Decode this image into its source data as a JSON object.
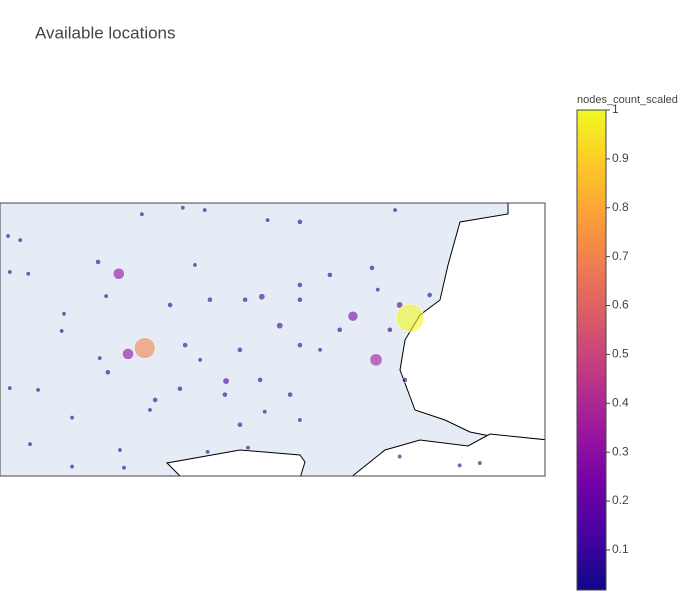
{
  "chart_data": {
    "type": "scatter_geo",
    "title": "Available locations",
    "colorbar_title": "nodes_count_scaled",
    "colorscale": [
      "#0d0887",
      "#46039f",
      "#7201a8",
      "#9c179e",
      "#bd3786",
      "#d8576b",
      "#ed7953",
      "#fb9f3a",
      "#fdca26",
      "#f0f921"
    ],
    "clim": [
      0.018,
      1
    ],
    "cticks": [
      0.1,
      0.2,
      0.3,
      0.4,
      0.5,
      0.6,
      0.7,
      0.8,
      0.9,
      1
    ],
    "lonlim": [
      20.8,
      30.25
    ],
    "latlim": [
      40.53,
      45.16
    ],
    "lon": [
      23.31,
      27.91,
      22.86,
      27.32,
      26.92,
      23.02,
      25.34,
      25.65,
      24.72,
      23.26,
      23.97,
      24.35,
      25.44,
      26.0,
      27.65,
      20.94,
      21.15,
      20.97,
      21.29,
      22.5,
      22.64,
      21.91,
      21.87,
      22.53,
      22.67,
      20.97,
      21.46,
      22.05,
      21.32,
      22.05,
      22.88,
      22.95,
      23.49,
      23.75,
      24.18,
      24.44,
      25.05,
      26.0,
      26.52,
      27.25,
      27.35,
      26.0,
      24.01,
      24.27,
      24.96,
      25.31,
      26.0,
      26.35,
      26.69,
      27.56,
      27.73,
      28.25,
      27.82,
      24.96,
      25.39,
      26.0,
      24.4,
      25.1,
      27.73,
      28.77,
      29.12,
      23.92,
      23.4,
      24.7,
      25.83
    ],
    "lat": [
      42.7,
      43.21,
      43.96,
      42.5,
      43.24,
      42.6,
      43.57,
      43.08,
      42.14,
      44.97,
      45.08,
      45.04,
      44.87,
      44.84,
      45.04,
      44.6,
      44.53,
      43.99,
      43.96,
      44.16,
      43.58,
      43.28,
      42.99,
      42.53,
      42.29,
      42.02,
      41.99,
      41.52,
      41.07,
      40.69,
      40.97,
      40.67,
      41.82,
      43.43,
      44.11,
      43.52,
      43.52,
      43.52,
      43.94,
      44.06,
      43.69,
      43.77,
      42.75,
      42.5,
      42.67,
      42.16,
      42.75,
      42.67,
      43.01,
      43.01,
      43.43,
      43.6,
      42.16,
      41.4,
      41.62,
      41.48,
      40.94,
      41.01,
      40.86,
      40.71,
      40.75,
      42.01,
      41.65,
      41.91,
      41.91
    ],
    "values": [
      0.7,
      1,
      0.3,
      0.35,
      0.25,
      0.3,
      0.1,
      0.1,
      0.1,
      0.02,
      0.02,
      0.02,
      0.02,
      0.05,
      0.02,
      0.02,
      0.02,
      0.02,
      0.02,
      0.05,
      0.02,
      0.02,
      0.02,
      0.02,
      0.05,
      0.02,
      0.02,
      0.02,
      0.02,
      0.02,
      0.02,
      0.02,
      0.05,
      0.05,
      0.02,
      0.05,
      0.05,
      0.05,
      0.05,
      0.05,
      0.02,
      0.05,
      0.05,
      0.02,
      0.05,
      0.05,
      0.05,
      0.02,
      0.05,
      0.05,
      0.1,
      0.05,
      0.05,
      0.05,
      0.02,
      0.02,
      0.02,
      0.02,
      0.02,
      0.02,
      0.02,
      0.05,
      0.02,
      0.05,
      0.05
    ]
  }
}
